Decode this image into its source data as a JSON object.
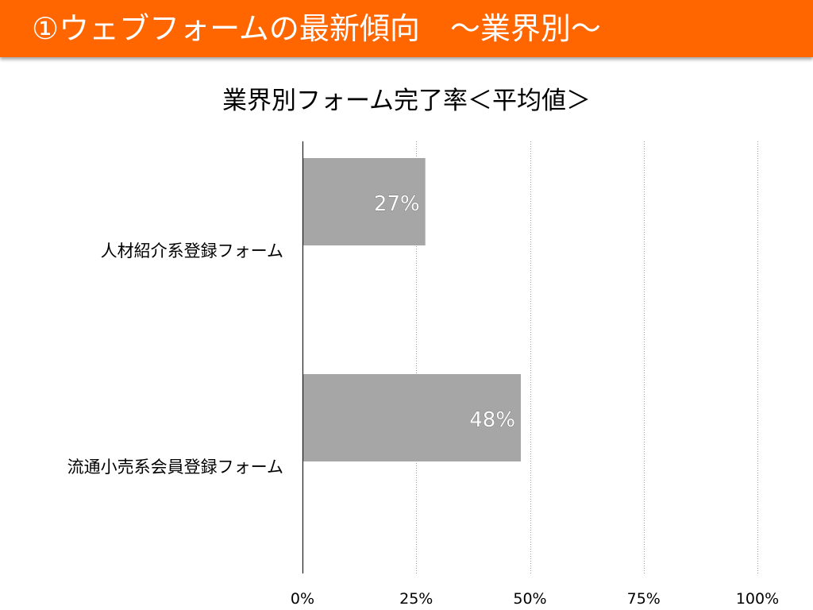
{
  "slide": {
    "title": "①ウェブフォームの最新傾向　～業界別～",
    "accent_color": "#FF6600"
  },
  "chart_data": {
    "type": "bar",
    "orientation": "horizontal",
    "title": "業界別フォーム完了率＜平均値＞",
    "categories": [
      "人材紹介系登録フォーム",
      "流通小売系会員登録フォーム"
    ],
    "values": [
      0.27,
      0.48
    ],
    "data_labels": [
      "27%",
      "48%"
    ],
    "xlim": [
      0,
      1
    ],
    "x_ticks": [
      0,
      0.25,
      0.5,
      0.75,
      1
    ],
    "x_tick_labels": [
      "0%",
      "25%",
      "50%",
      "75%",
      "100%"
    ],
    "xlabel": "",
    "ylabel": "",
    "grid": "vertical-dotted",
    "legend": "none",
    "bar_color": "#A6A6A6",
    "data_label_color": "#FFFFFF"
  }
}
